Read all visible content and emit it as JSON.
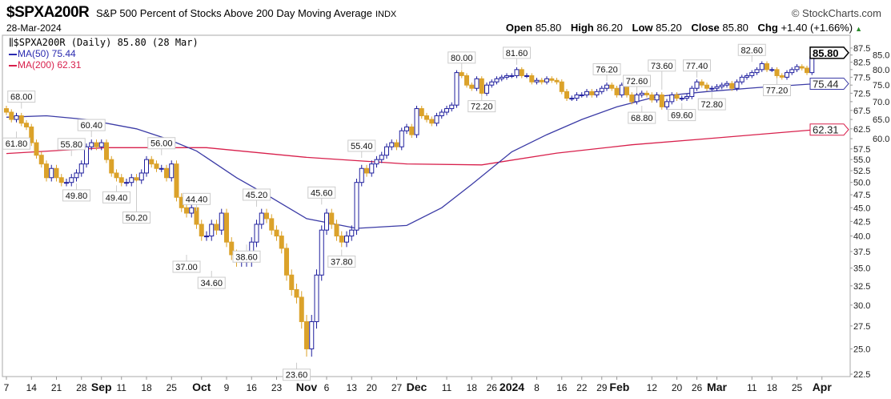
{
  "header": {
    "symbol": "$SPXA200R",
    "description": "S&P 500 Percent of Stocks Above 200 Day Moving Average",
    "exchange": "INDX",
    "date": "28-Mar-2024",
    "brand": "© StockCharts.com",
    "open_label": "Open",
    "open": "85.80",
    "high_label": "High",
    "high": "86.20",
    "low_label": "Low",
    "low": "85.20",
    "close_label": "Close",
    "close": "85.80",
    "chg_label": "Chg",
    "chg": "+1.40 (+1.66%)",
    "chg_icon": "up-triangle-icon"
  },
  "legend": {
    "main": "$SPXA200R (Daily) 85.80 (28 Mar)",
    "ma50": "MA(50) 75.44",
    "ma200": "MA(200) 62.31"
  },
  "colors": {
    "up": "#1f1f9e",
    "down": "#dba22a",
    "ma50": "#3b3ba6",
    "ma200": "#d8204c",
    "grid": "#cccccc"
  },
  "chart_data": {
    "type": "candlestick",
    "title": "$SPXA200R S&P 500 Percent of Stocks Above 200 Day Moving Average",
    "yscale": "log",
    "ylim": [
      22.5,
      87.5
    ],
    "yticks": [
      "22.5",
      "25.0",
      "27.5",
      "30.0",
      "32.5",
      "35.0",
      "37.5",
      "40.0",
      "42.5",
      "45.0",
      "47.5",
      "50.0",
      "52.5",
      "55.0",
      "57.5",
      "60.0",
      "62.5",
      "65.0",
      "67.5",
      "70.0",
      "72.5",
      "75.0",
      "77.5",
      "80.0",
      "82.5",
      "85.0",
      "87.5"
    ],
    "close": [
      67,
      65,
      66,
      64,
      63,
      59,
      56,
      54,
      51,
      53,
      51,
      50,
      50,
      51,
      52,
      54,
      58,
      59,
      58,
      59,
      55,
      52,
      51,
      50,
      50,
      51,
      50.5,
      52,
      55,
      54,
      53,
      53,
      51,
      54,
      47,
      45,
      44,
      45,
      42,
      40,
      40,
      42,
      41,
      44,
      39,
      37,
      36,
      36,
      36,
      39,
      42,
      44,
      43,
      41,
      40,
      38,
      34,
      32,
      31,
      28,
      25,
      28,
      34,
      41,
      44,
      42,
      40,
      39,
      40,
      41,
      50,
      53,
      52,
      54,
      55,
      56,
      58,
      59,
      58,
      62,
      63,
      61,
      68,
      66,
      65,
      64,
      66,
      67,
      68,
      69,
      79,
      78,
      75,
      74,
      77,
      72.5,
      75,
      76,
      77,
      77.5,
      78,
      78,
      80,
      78,
      78,
      76,
      76.5,
      76,
      77,
      76.5,
      76,
      73,
      71,
      71,
      72,
      72,
      73,
      72,
      73,
      74,
      75,
      74,
      72,
      75,
      72,
      70,
      72,
      72.5,
      72,
      70.5,
      72,
      68.5,
      70,
      72,
      71,
      71,
      71.5,
      74,
      76,
      75,
      74,
      74,
      74.5,
      75,
      75.5,
      74,
      76,
      77.5,
      78,
      79,
      80,
      82,
      80,
      80,
      78,
      77.5,
      79,
      80,
      81,
      80.5,
      79,
      84.4,
      85.8
    ],
    "last_ohlc": {
      "open": 85.8,
      "high": 86.2,
      "low": 85.2,
      "close": 85.8
    },
    "ma50": [
      [
        0,
        65.6
      ],
      [
        8,
        66
      ],
      [
        16,
        65
      ],
      [
        26,
        62.5
      ],
      [
        32,
        60
      ],
      [
        38,
        57
      ],
      [
        46,
        51
      ],
      [
        52,
        47.5
      ],
      [
        60,
        43
      ],
      [
        70,
        41.3
      ],
      [
        80,
        41.8
      ],
      [
        87,
        45
      ],
      [
        93,
        49.6
      ],
      [
        101,
        56.8
      ],
      [
        108,
        61
      ],
      [
        115,
        65
      ],
      [
        122,
        68.5
      ],
      [
        130,
        71.5
      ],
      [
        140,
        73
      ],
      [
        150,
        74.2
      ],
      [
        162,
        75.44
      ]
    ],
    "ma200": [
      [
        0,
        56.4
      ],
      [
        20,
        57.8
      ],
      [
        40,
        57.8
      ],
      [
        60,
        55.5
      ],
      [
        80,
        54
      ],
      [
        95,
        53.8
      ],
      [
        110,
        56.5
      ],
      [
        125,
        58.5
      ],
      [
        140,
        60
      ],
      [
        162,
        62.31
      ]
    ],
    "annotations": [
      {
        "i": 3,
        "text": "68.00",
        "pos": "above",
        "v": 68
      },
      {
        "i": 2,
        "text": "61.80",
        "pos": "below",
        "v": 61.8
      },
      {
        "i": 17,
        "text": "60.40",
        "pos": "above",
        "v": 60.4
      },
      {
        "i": 13,
        "text": "55.80",
        "pos": "above",
        "v": 55.8
      },
      {
        "i": 14,
        "text": "49.80",
        "pos": "below",
        "v": 49.8
      },
      {
        "i": 22,
        "text": "49.40",
        "pos": "below",
        "v": 49.4
      },
      {
        "i": 26,
        "text": "50.20",
        "pos": "below",
        "v": 50.2
      },
      {
        "i": 31,
        "text": "56.00",
        "pos": "above",
        "v": 56
      },
      {
        "i": 38,
        "text": "44.40",
        "pos": "above",
        "v": 44.4
      },
      {
        "i": 36,
        "text": "37.00",
        "pos": "below",
        "v": 37
      },
      {
        "i": 41,
        "text": "34.60",
        "pos": "below",
        "v": 34.6
      },
      {
        "i": 50,
        "text": "45.20",
        "pos": "above",
        "v": 45.2
      },
      {
        "i": 48,
        "text": "38.60",
        "pos": "below",
        "v": 38.6
      },
      {
        "i": 58,
        "text": "23.60",
        "pos": "below",
        "v": 23.6
      },
      {
        "i": 63,
        "text": "45.60",
        "pos": "above",
        "v": 45.6
      },
      {
        "i": 67,
        "text": "37.80",
        "pos": "below",
        "v": 37.8
      },
      {
        "i": 71,
        "text": "55.40",
        "pos": "above",
        "v": 55.4
      },
      {
        "i": 91,
        "text": "80.00",
        "pos": "above",
        "v": 80
      },
      {
        "i": 95,
        "text": "72.20",
        "pos": "below",
        "v": 72.2
      },
      {
        "i": 102,
        "text": "81.60",
        "pos": "above",
        "v": 81.6
      },
      {
        "i": 120,
        "text": "76.20",
        "pos": "above",
        "v": 76.2
      },
      {
        "i": 126,
        "text": "72.60",
        "pos": "above",
        "v": 72.6
      },
      {
        "i": 127,
        "text": "68.80",
        "pos": "below",
        "v": 68.8
      },
      {
        "i": 131,
        "text": "73.60",
        "pos": "above",
        "v": 73.6
      },
      {
        "i": 135,
        "text": "69.60",
        "pos": "below",
        "v": 69.6
      },
      {
        "i": 138,
        "text": "77.40",
        "pos": "above",
        "v": 77.4
      },
      {
        "i": 141,
        "text": "72.80",
        "pos": "below",
        "v": 72.8
      },
      {
        "i": 149,
        "text": "82.60",
        "pos": "above",
        "v": 82.6
      },
      {
        "i": 154,
        "text": "77.20",
        "pos": "below",
        "v": 77.2
      }
    ],
    "xticks": [
      {
        "i": 0,
        "label": "7"
      },
      {
        "i": 5,
        "label": "14"
      },
      {
        "i": 10,
        "label": "21"
      },
      {
        "i": 15,
        "label": "28"
      },
      {
        "i": 19,
        "label": "Sep",
        "bold": true
      },
      {
        "i": 23,
        "label": "11"
      },
      {
        "i": 28,
        "label": "18"
      },
      {
        "i": 33,
        "label": "25"
      },
      {
        "i": 39,
        "label": "Oct",
        "bold": true
      },
      {
        "i": 44,
        "label": "9"
      },
      {
        "i": 49,
        "label": "16"
      },
      {
        "i": 54,
        "label": "23"
      },
      {
        "i": 60,
        "label": "Nov",
        "bold": true
      },
      {
        "i": 64,
        "label": "6"
      },
      {
        "i": 69,
        "label": "13"
      },
      {
        "i": 73,
        "label": "20"
      },
      {
        "i": 78,
        "label": "27"
      },
      {
        "i": 82,
        "label": "Dec",
        "bold": true
      },
      {
        "i": 88,
        "label": "11"
      },
      {
        "i": 93,
        "label": "18"
      },
      {
        "i": 97,
        "label": "26"
      },
      {
        "i": 101,
        "label": "2024",
        "bold": true
      },
      {
        "i": 106,
        "label": "8"
      },
      {
        "i": 111,
        "label": "16"
      },
      {
        "i": 115,
        "label": "22"
      },
      {
        "i": 119,
        "label": "29"
      },
      {
        "i": 122,
        "label": "Feb",
        "bold": true
      },
      {
        "i": 129,
        "label": "12"
      },
      {
        "i": 134,
        "label": "20"
      },
      {
        "i": 138,
        "label": "26"
      },
      {
        "i": 142,
        "label": "Mar",
        "bold": true
      },
      {
        "i": 149,
        "label": "11"
      },
      {
        "i": 153,
        "label": "18"
      },
      {
        "i": 158,
        "label": "25"
      },
      {
        "i": 163,
        "label": "Apr",
        "bold": true
      }
    ],
    "badges": [
      {
        "v": 85.8,
        "text": "85.80",
        "series": "price"
      },
      {
        "v": 75.44,
        "text": "75.44",
        "series": "ma50"
      },
      {
        "v": 62.31,
        "text": "62.31",
        "series": "ma200"
      }
    ]
  }
}
